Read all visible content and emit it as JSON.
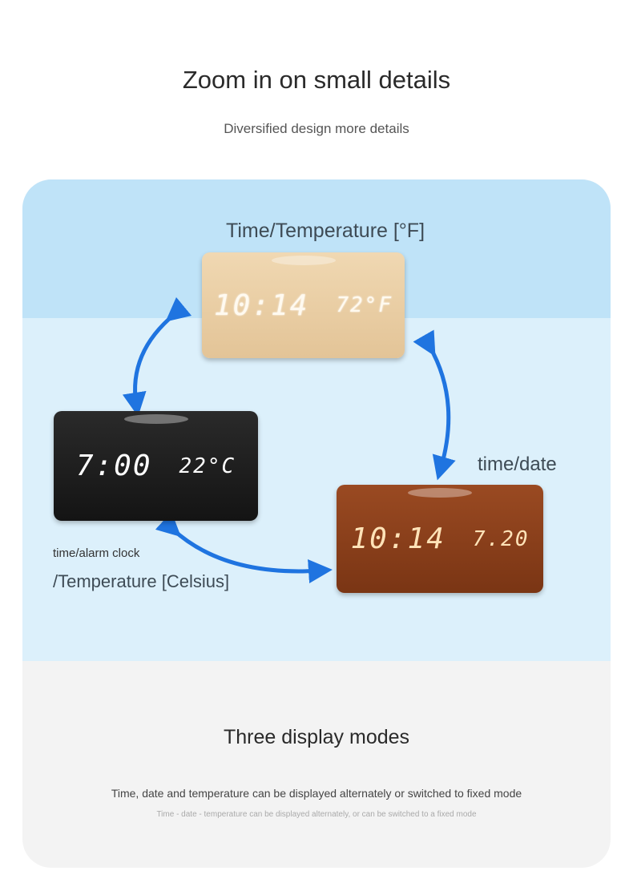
{
  "header": {
    "title": "Zoom in on small details",
    "subtitle": "Diversified design more details"
  },
  "modes": {
    "fahrenheit": {
      "label": "Time/Temperature [°F]",
      "time": "10:14",
      "value": "72°F"
    },
    "date": {
      "label": "time/date",
      "time": "10:14",
      "value": "7.20"
    },
    "celsius": {
      "label_line1": "time/alarm clock",
      "label_line2": "/Temperature [Celsius]",
      "time": "7:00",
      "value": "22°C"
    }
  },
  "footer": {
    "title": "Three display modes",
    "description": "Time, date and temperature can be displayed alternately or switched to fixed mode",
    "description_small": "Time - date - temperature can be displayed alternately, or can be switched to a fixed mode"
  },
  "colors": {
    "arrow": "#1f74e0",
    "band_top": "#bfe3f8",
    "band_mid": "#dcf0fb",
    "band_bottom": "#f3f3f3"
  }
}
